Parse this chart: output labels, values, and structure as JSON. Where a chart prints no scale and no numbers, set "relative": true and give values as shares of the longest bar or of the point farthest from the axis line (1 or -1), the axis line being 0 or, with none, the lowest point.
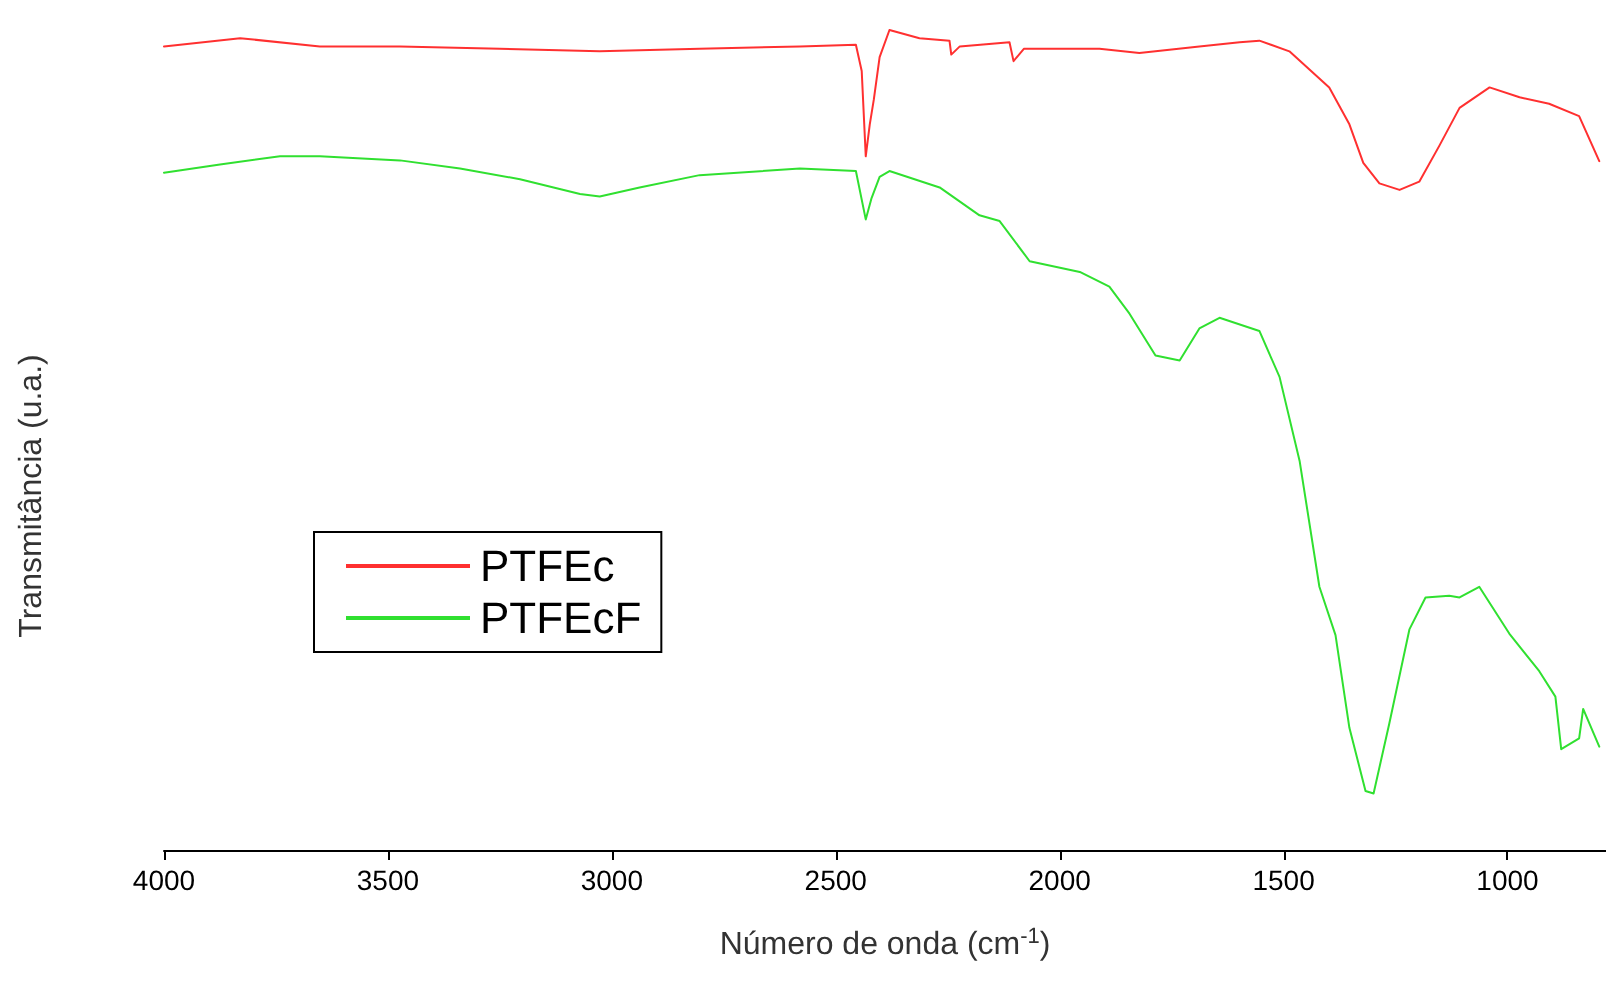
{
  "chart_data": {
    "type": "line",
    "relative": true,
    "xlabel": "Número de onda (cm$^{-1}$)",
    "ylabel": "Transmitância (u.a.)",
    "xlim": [
      4000,
      780
    ],
    "xticks": [
      4000,
      3500,
      3000,
      2500,
      2000,
      1500,
      1000
    ],
    "legend": "bottom left",
    "grid": false,
    "marker": "none",
    "line_style": "solid",
    "series": [
      {
        "name": "PTFEc",
        "color": "#ff3030",
        "x": [
          4000,
          3830,
          3652,
          3473,
          3250,
          3027,
          2804,
          2580,
          2455,
          2442,
          2433,
          2424,
          2415,
          2402,
          2380,
          2313,
          2246,
          2242,
          2223,
          2112,
          2103,
          2080,
          1911,
          1822,
          1688,
          1598,
          1554,
          1487,
          1398,
          1353,
          1322,
          1286,
          1241,
          1197,
          1152,
          1107,
          1040,
          973,
          907,
          840,
          795
        ],
        "values": [
          0.98,
          0.99,
          0.98,
          0.98,
          0.977,
          0.974,
          0.977,
          0.98,
          0.982,
          0.95,
          0.846,
          0.885,
          0.915,
          0.967,
          1,
          0.99,
          0.987,
          0.97,
          0.98,
          0.985,
          0.962,
          0.977,
          0.977,
          0.972,
          0.98,
          0.985,
          0.987,
          0.974,
          0.93,
          0.885,
          0.838,
          0.813,
          0.805,
          0.815,
          0.859,
          0.905,
          0.93,
          0.918,
          0.91,
          0.895,
          0.84
        ]
      },
      {
        "name": "PTFEcF",
        "color": "#30e030",
        "x": [
          4000,
          3875,
          3741,
          3652,
          3473,
          3339,
          3205,
          3071,
          3027,
          2938,
          2804,
          2580,
          2455,
          2433,
          2420,
          2402,
          2380,
          2268,
          2179,
          2134,
          2067,
          1955,
          1889,
          1844,
          1786,
          1732,
          1688,
          1643,
          1554,
          1509,
          1464,
          1420,
          1384,
          1353,
          1317,
          1299,
          1264,
          1219,
          1183,
          1130,
          1107,
          1063,
          996,
          929,
          893,
          880,
          840,
          831,
          795
        ],
        "values": [
          0.826,
          0.836,
          0.846,
          0.846,
          0.841,
          0.831,
          0.818,
          0.8,
          0.797,
          0.808,
          0.823,
          0.831,
          0.828,
          0.769,
          0.795,
          0.821,
          0.828,
          0.808,
          0.774,
          0.767,
          0.718,
          0.705,
          0.687,
          0.654,
          0.603,
          0.597,
          0.636,
          0.649,
          0.633,
          0.577,
          0.474,
          0.321,
          0.262,
          0.149,
          0.072,
          0.069,
          0.154,
          0.269,
          0.308,
          0.31,
          0.308,
          0.321,
          0.264,
          0.218,
          0.187,
          0.123,
          0.136,
          0.172,
          0.126
        ]
      }
    ]
  }
}
